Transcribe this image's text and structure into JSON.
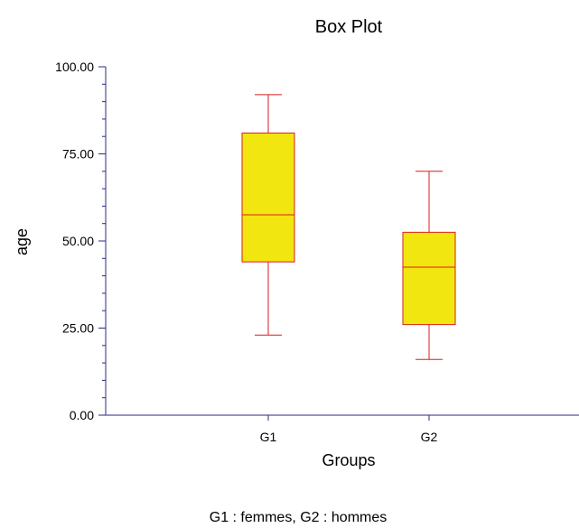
{
  "chart_data": {
    "type": "box",
    "title": "Box Plot",
    "xlabel": "Groups",
    "ylabel": "age",
    "ylim": [
      0,
      100
    ],
    "yticks": [
      "0.00",
      "25.00",
      "50.00",
      "75.00",
      "100.00"
    ],
    "categories": [
      "G1",
      "G2"
    ],
    "boxes": [
      {
        "category": "G1",
        "min": 23,
        "q1": 44,
        "median": 57.5,
        "q3": 81,
        "max": 92
      },
      {
        "category": "G2",
        "min": 16,
        "q1": 26,
        "median": 42.5,
        "q3": 52.5,
        "max": 70
      }
    ],
    "footnote": "G1 : femmes, G2 : hommes",
    "colors": {
      "box_fill": "#f2e610",
      "box_stroke": "#d81e1e",
      "axis": "#2a2a8a"
    },
    "grid": false
  }
}
